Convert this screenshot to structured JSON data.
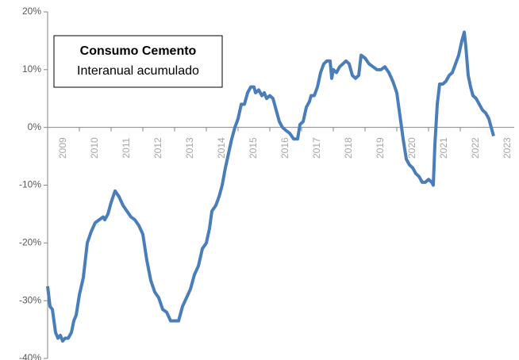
{
  "chart_data": {
    "type": "line",
    "legend_title": "Consumo Cemento",
    "legend_subtitle": "Interanual acumulado",
    "categories": [
      "2009",
      "2010",
      "2011",
      "2012",
      "2013",
      "2014",
      "2015",
      "2016",
      "2017",
      "2018",
      "2019",
      "2020",
      "2021",
      "2022",
      "2023"
    ],
    "x": [
      2009.0,
      2009.075,
      2009.15,
      2009.25,
      2009.325,
      2009.4,
      2009.475,
      2009.55,
      2009.65,
      2009.75,
      2009.825,
      2009.9,
      2010.0,
      2010.125,
      2010.25,
      2010.375,
      2010.5,
      2010.625,
      2010.75,
      2010.8,
      2010.9,
      2011.0,
      2011.125,
      2011.25,
      2011.375,
      2011.5,
      2011.625,
      2011.75,
      2011.875,
      2012.0,
      2012.125,
      2012.25,
      2012.375,
      2012.5,
      2012.625,
      2012.75,
      2012.875,
      2013.0,
      2013.125,
      2013.25,
      2013.375,
      2013.5,
      2013.625,
      2013.75,
      2013.875,
      2014.0,
      2014.1,
      2014.175,
      2014.3,
      2014.4,
      2014.5,
      2014.6,
      2014.7,
      2014.8,
      2014.9,
      2015.0,
      2015.1,
      2015.2,
      2015.3,
      2015.4,
      2015.5,
      2015.55,
      2015.65,
      2015.75,
      2015.825,
      2015.9,
      2016.0,
      2016.1,
      2016.2,
      2016.3,
      2016.4,
      2016.5,
      2016.625,
      2016.75,
      2016.875,
      2016.95,
      2017.05,
      2017.15,
      2017.25,
      2017.3,
      2017.4,
      2017.5,
      2017.6,
      2017.7,
      2017.8,
      2017.9,
      2017.95,
      2018.0,
      2018.1,
      2018.2,
      2018.3,
      2018.4,
      2018.5,
      2018.6,
      2018.7,
      2018.8,
      2018.875,
      2019.0,
      2019.125,
      2019.25,
      2019.375,
      2019.5,
      2019.625,
      2019.75,
      2019.875,
      2020.0,
      2020.1,
      2020.2,
      2020.3,
      2020.4,
      2020.5,
      2020.6,
      2020.7,
      2020.8,
      2020.9,
      2021.0,
      2021.1,
      2021.15,
      2021.2,
      2021.275,
      2021.35,
      2021.45,
      2021.55,
      2021.65,
      2021.75,
      2021.85,
      2021.95,
      2022.05,
      2022.125,
      2022.175,
      2022.25,
      2022.325,
      2022.4,
      2022.5,
      2022.6,
      2022.7,
      2022.8,
      2022.9,
      2022.975,
      2023.05
    ],
    "series": [
      {
        "color": "#4a7ebb",
        "values": [
          -27.5,
          -31,
          -31.5,
          -35.5,
          -36.5,
          -36,
          -37,
          -36.5,
          -36.5,
          -35.5,
          -33.5,
          -32.5,
          -29,
          -26,
          -20,
          -18,
          -16.5,
          -16,
          -15.5,
          -16,
          -15,
          -13,
          -11,
          -12,
          -13.5,
          -14.5,
          -15.5,
          -16,
          -17,
          -18.5,
          -23,
          -26.5,
          -28.5,
          -29.5,
          -31.5,
          -32,
          -33.5,
          -33.5,
          -33.5,
          -31,
          -29.5,
          -28,
          -25.5,
          -24,
          -21,
          -20,
          -17.5,
          -14.5,
          -13.5,
          -12,
          -10,
          -7,
          -4.5,
          -2,
          0,
          1.5,
          4,
          4,
          6,
          7,
          7,
          6,
          6.5,
          5.5,
          6,
          5,
          5.5,
          5,
          3,
          1,
          0,
          -0.5,
          -1,
          -2,
          -2,
          0.5,
          1,
          3.5,
          4.5,
          5.5,
          5.5,
          7,
          9.5,
          11,
          11.5,
          11.5,
          8.5,
          10,
          9.5,
          10.5,
          11,
          11.5,
          11,
          9,
          8.5,
          9,
          12.5,
          12,
          11,
          10.5,
          10,
          10,
          10.5,
          9.5,
          8,
          6,
          2,
          -2,
          -5.5,
          -6.5,
          -7,
          -8,
          -8.5,
          -9.5,
          -9.5,
          -9,
          -9.5,
          -10,
          -3,
          4,
          7.5,
          7.5,
          8,
          9,
          9.5,
          11,
          12.5,
          15,
          16.5,
          14,
          9,
          7,
          5.5,
          5,
          4,
          3,
          2.5,
          1.5,
          0,
          -1.5
        ]
      }
    ],
    "xlim": [
      2009,
      2023.7
    ],
    "ylim": [
      -40,
      20
    ],
    "yticks": [
      {
        "value": -40,
        "label": "-40%"
      },
      {
        "value": -30,
        "label": "-30%"
      },
      {
        "value": -20,
        "label": "-20%"
      },
      {
        "value": -10,
        "label": "-10%"
      },
      {
        "value": 0,
        "label": "0%"
      },
      {
        "value": 10,
        "label": "10%"
      },
      {
        "value": 20,
        "label": "20%"
      }
    ]
  }
}
